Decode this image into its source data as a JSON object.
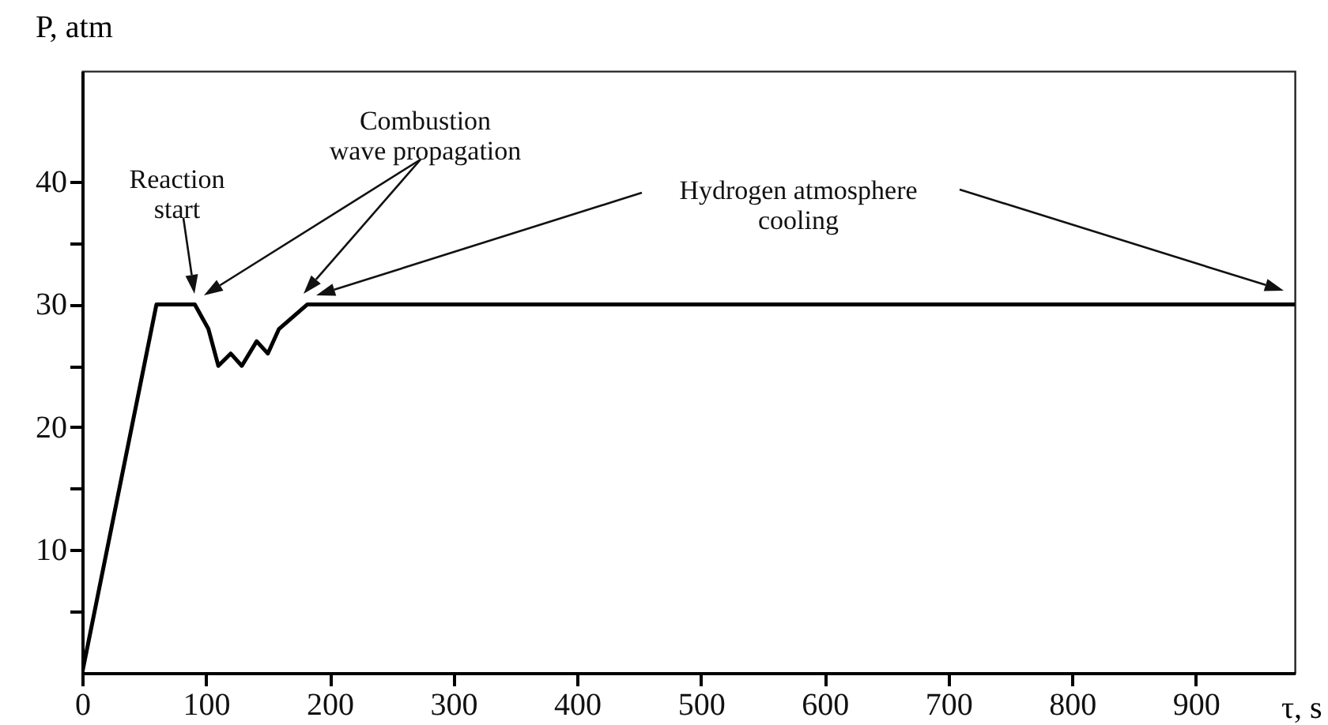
{
  "chart_data": {
    "type": "line",
    "xlabel": "τ, s",
    "ylabel": "P, atm",
    "x": [
      0,
      60,
      91,
      102,
      110,
      120,
      129,
      141,
      150,
      159,
      182,
      980
    ],
    "series": [
      {
        "color": "#000000",
        "values": [
          0,
          30,
          30,
          28,
          25,
          26,
          25,
          27,
          26,
          28,
          30,
          30
        ]
      }
    ],
    "xlim": [
      0,
      980
    ],
    "xticks": [
      {
        "value": 0,
        "label": "0"
      },
      100,
      200,
      300,
      400,
      500,
      600,
      700,
      800,
      900
    ],
    "ylim": [
      0,
      49
    ],
    "yticks": [
      {
        "value": 5,
        "label": null
      },
      10,
      {
        "value": 15,
        "label": null
      },
      20,
      {
        "value": 25,
        "label": null
      },
      30,
      {
        "value": 35,
        "label": null
      },
      40
    ],
    "grid": false,
    "annotations": [
      "Reaction start",
      "Combustion wave propagation",
      "Hydrogen atmosphere cooling"
    ]
  }
}
